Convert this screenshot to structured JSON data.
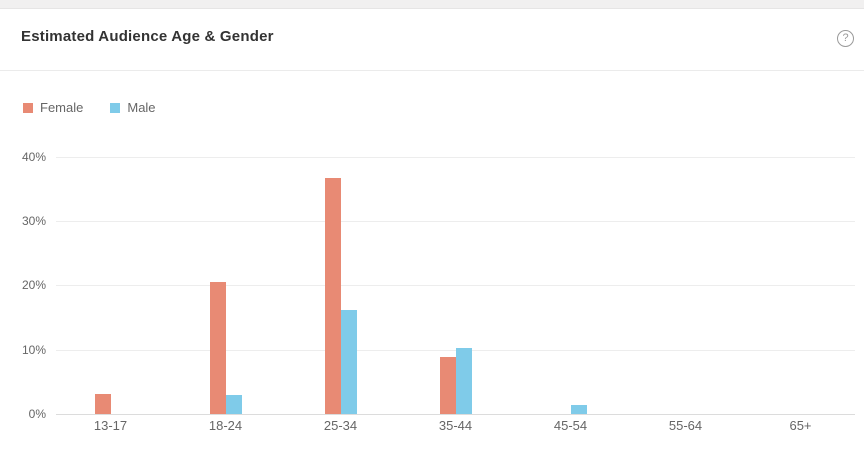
{
  "page": {
    "title": "Estimated Audience Age & Gender",
    "help_glyph": "?"
  },
  "legend": {
    "items": [
      {
        "label": "Female",
        "color": "#E88A74"
      },
      {
        "label": "Male",
        "color": "#7FCBE9"
      }
    ]
  },
  "chart_data": {
    "type": "bar",
    "title": "Estimated Audience Age & Gender",
    "categories": [
      "13-17",
      "18-24",
      "25-34",
      "35-44",
      "45-54",
      "55-64",
      "65+"
    ],
    "series": [
      {
        "name": "Female",
        "color": "#E88A74",
        "values": [
          3.1,
          20.6,
          36.7,
          8.8,
          0,
          0,
          0
        ]
      },
      {
        "name": "Male",
        "color": "#7FCBE9",
        "values": [
          0,
          2.9,
          16.1,
          10.2,
          1.4,
          0,
          0
        ]
      }
    ],
    "xlabel": "",
    "ylabel": "",
    "y_ticks": [
      "0%",
      "10%",
      "20%",
      "30%",
      "40%"
    ],
    "y_tick_values": [
      0,
      10,
      20,
      30,
      40
    ],
    "ylim": [
      0,
      40
    ],
    "grid": true,
    "legend_position": "top-left"
  },
  "colors": {
    "gridline": "#ededed",
    "axis_line": "#dcdcdc",
    "axis_text": "#666666",
    "title_text": "#333333"
  }
}
